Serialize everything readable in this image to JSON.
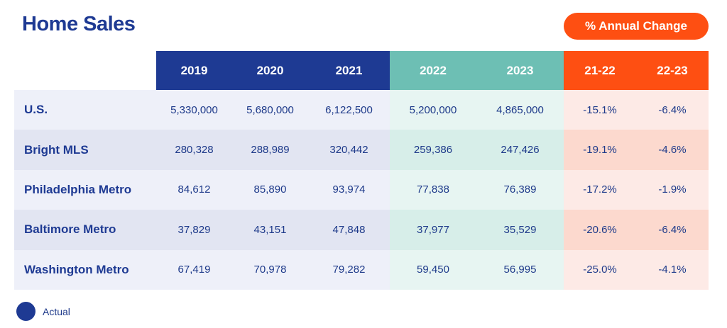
{
  "title": "Home Sales",
  "change_pill": "% Annual Change",
  "legend": {
    "actual_label": "Actual"
  },
  "colors": {
    "navy": "#1e3a93",
    "teal": "#6dbfb4",
    "orange": "#fe4f12",
    "row_blue_light": "#eef0f9",
    "row_blue_dark": "#e2e5f2",
    "row_teal_light": "#e7f5f2",
    "row_teal_dark": "#d7eee9",
    "row_orange_light": "#fdeae6",
    "row_orange_dark": "#fcd9ce"
  },
  "chart_data": {
    "type": "table",
    "title": "Home Sales",
    "columns": [
      "2019",
      "2020",
      "2021",
      "2022",
      "2023",
      "21-22",
      "22-23"
    ],
    "column_groups": {
      "actual": [
        "2019",
        "2020",
        "2021"
      ],
      "recent": [
        "2022",
        "2023"
      ],
      "annual_change": [
        "21-22",
        "22-23"
      ]
    },
    "rows": [
      {
        "label": "U.S.",
        "values": [
          "5,330,000",
          "5,680,000",
          "6,122,500",
          "5,200,000",
          "4,865,000",
          "-15.1%",
          "-6.4%"
        ]
      },
      {
        "label": "Bright MLS",
        "values": [
          "280,328",
          "288,989",
          "320,442",
          "259,386",
          "247,426",
          "-19.1%",
          "-4.6%"
        ]
      },
      {
        "label": "Philadelphia Metro",
        "values": [
          "84,612",
          "85,890",
          "93,974",
          "77,838",
          "76,389",
          "-17.2%",
          "-1.9%"
        ]
      },
      {
        "label": "Baltimore Metro",
        "values": [
          "37,829",
          "43,151",
          "47,848",
          "37,977",
          "35,529",
          "-20.6%",
          "-6.4%"
        ]
      },
      {
        "label": "Washington Metro",
        "values": [
          "67,419",
          "70,978",
          "79,282",
          "59,450",
          "56,995",
          "-25.0%",
          "-4.1%"
        ]
      }
    ]
  }
}
